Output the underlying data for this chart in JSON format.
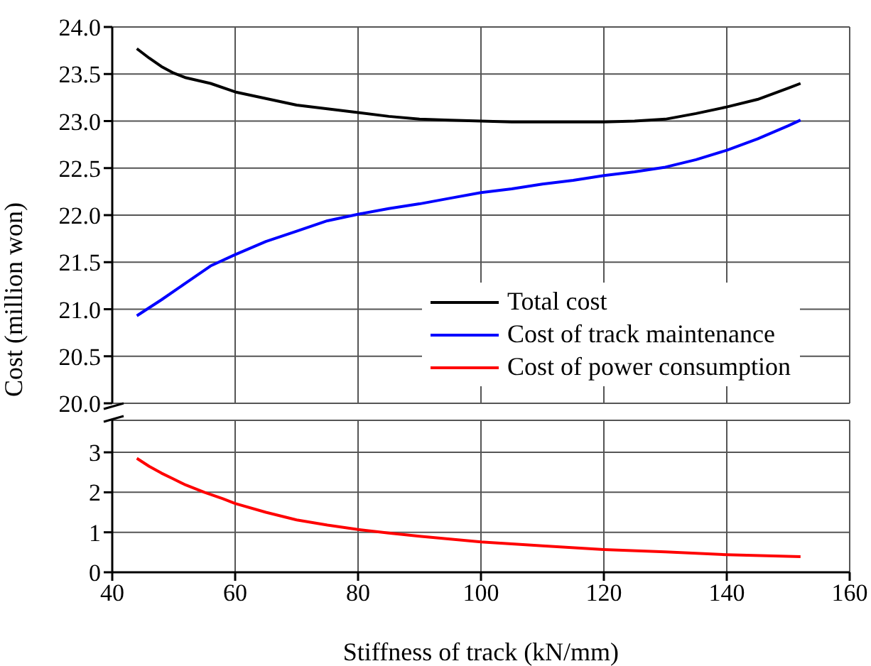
{
  "chart_data": [
    {
      "type": "line",
      "ylabel": "Cost (million won)",
      "xlim": [
        40,
        160
      ],
      "xticks": [
        40,
        60,
        80,
        100,
        120,
        140,
        160
      ],
      "ylim": [
        20,
        24
      ],
      "yticks": [
        {
          "value": 20,
          "label": "20.0"
        },
        {
          "value": 20.5,
          "label": "20.5"
        },
        {
          "value": 21,
          "label": "21.0"
        },
        {
          "value": 21.5,
          "label": "21.5"
        },
        {
          "value": 22,
          "label": "22.0"
        },
        {
          "value": 22.5,
          "label": "22.5"
        },
        {
          "value": 23,
          "label": "23.0"
        },
        {
          "value": 23.5,
          "label": "23.5"
        },
        {
          "value": 24,
          "label": "24.0"
        }
      ],
      "tick_labels": "y",
      "grid": true,
      "legend": "bottom right",
      "marker": "none",
      "line_style": "solid",
      "series": [
        {
          "name": "Total cost",
          "color": "#000000",
          "x": [
            44,
            46,
            48,
            50,
            52,
            54,
            56,
            60,
            65,
            70,
            75,
            80,
            85,
            90,
            95,
            100,
            105,
            110,
            115,
            120,
            125,
            130,
            135,
            140,
            145,
            150,
            152
          ],
          "values": [
            23.77,
            23.67,
            23.58,
            23.51,
            23.46,
            23.43,
            23.4,
            23.31,
            23.24,
            23.17,
            23.13,
            23.09,
            23.05,
            23.02,
            23.01,
            23.0,
            22.99,
            22.99,
            22.99,
            22.99,
            23.0,
            23.02,
            23.08,
            23.15,
            23.23,
            23.35,
            23.4
          ]
        },
        {
          "name": "Cost of track maintenance",
          "color": "#0000ff",
          "x": [
            44,
            48,
            52,
            56,
            60,
            65,
            70,
            75,
            80,
            85,
            90,
            95,
            100,
            105,
            110,
            115,
            120,
            125,
            130,
            135,
            140,
            145,
            150,
            152
          ],
          "values": [
            20.93,
            21.1,
            21.28,
            21.46,
            21.58,
            21.72,
            21.83,
            21.94,
            22.01,
            22.07,
            22.12,
            22.18,
            22.24,
            22.28,
            22.33,
            22.37,
            22.42,
            22.46,
            22.51,
            22.59,
            22.69,
            22.81,
            22.95,
            23.01
          ]
        }
      ]
    },
    {
      "type": "line",
      "xlabel": "Stiffness of track (kN/mm)",
      "xlim": [
        40,
        160
      ],
      "xticks": [
        40,
        60,
        80,
        100,
        120,
        140,
        160
      ],
      "ylim": [
        0,
        3.8
      ],
      "yticks": [
        0,
        1,
        2,
        3
      ],
      "grid": true,
      "marker": "none",
      "line_style": "solid",
      "series": [
        {
          "name": "Cost of power consumption",
          "color": "#ff0000",
          "x": [
            44,
            46,
            48,
            50,
            52,
            55,
            58,
            60,
            65,
            70,
            75,
            80,
            85,
            90,
            95,
            100,
            110,
            120,
            130,
            140,
            152
          ],
          "values": [
            2.85,
            2.65,
            2.48,
            2.33,
            2.18,
            2.0,
            1.84,
            1.72,
            1.5,
            1.31,
            1.18,
            1.07,
            0.98,
            0.9,
            0.83,
            0.76,
            0.66,
            0.57,
            0.51,
            0.44,
            0.39
          ]
        }
      ]
    }
  ]
}
